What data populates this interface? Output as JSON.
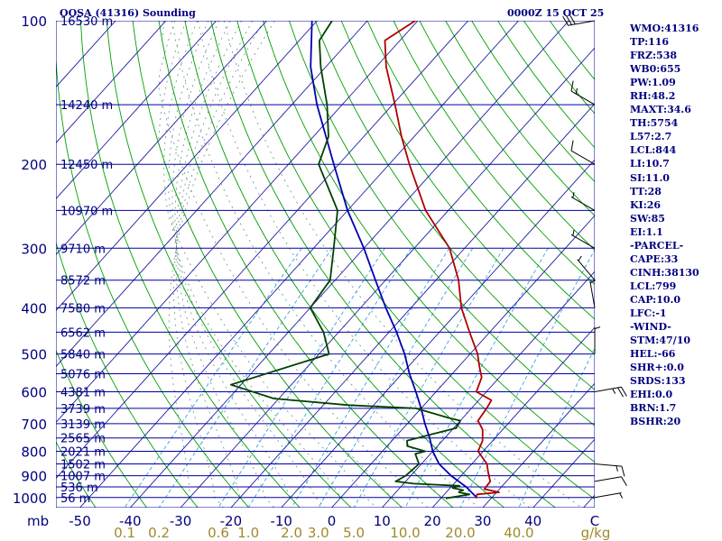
{
  "header": {
    "title": "OOSA (41316) Sounding",
    "datetime": "0000Z 15 OCT 25"
  },
  "stats": [
    "WMO:41316",
    "TP:116",
    "FRZ:538",
    "WB0:655",
    "PW:1.09",
    "RH:48.2",
    "MAXT:34.6",
    "TH:5754",
    "L57:2.7",
    "LCL:844",
    "LI:10.7",
    "SI:11.0",
    "TT:28",
    "KI:26",
    "SW:85",
    "EI:1.1",
    "-PARCEL-",
    "CAPE:33",
    "CINH:38130",
    "LCL:799",
    "CAP:10.0",
    "LFC:-1",
    "-WIND-",
    "STM:47/10",
    "HEL:-66",
    "SHR+:0.0",
    "SRDS:133",
    "EHI:0.0",
    "BRN:1.7",
    "BSHR:20"
  ],
  "colors": {
    "isobar": "#0000a0",
    "isotherm": "#1a1aa0",
    "dry_adiabat": "#00a000",
    "moist_adiabat": "#6a8f8a",
    "mixing_ratio": "#3aa0dc",
    "temperature": "#b00000",
    "dewpoint": "#004000",
    "parcel": "#0000b0",
    "axis_text": "#00007f",
    "mixing_text": "#a08a2a"
  },
  "chart_data": {
    "type": "line",
    "skewt": true,
    "pressure_ticks": [
      {
        "p": 100,
        "label": "100"
      },
      {
        "p": 200,
        "label": "200"
      },
      {
        "p": 300,
        "label": "300"
      },
      {
        "p": 400,
        "label": "400"
      },
      {
        "p": 500,
        "label": "500"
      },
      {
        "p": 600,
        "label": "600"
      },
      {
        "p": 700,
        "label": "700"
      },
      {
        "p": 800,
        "label": "800"
      },
      {
        "p": 900,
        "label": "900"
      },
      {
        "p": 1000,
        "label": "1000"
      }
    ],
    "pressure_unit": "mb",
    "temperature_ticks": [
      "-50",
      "-40",
      "-30",
      "-20",
      "-10",
      "0",
      "10",
      "20",
      "30",
      "40"
    ],
    "temperature_values": [
      -50,
      -40,
      -30,
      -20,
      -10,
      0,
      10,
      20,
      30,
      40
    ],
    "temperature_unit": "C",
    "mixing_ratio_labels": [
      "0.1",
      "0.2",
      "0.6",
      "1.0",
      "2.0",
      "3.0",
      "5.0",
      "10.0",
      "20.0",
      "40.0"
    ],
    "mixing_ratio_values": [
      0.1,
      0.2,
      0.6,
      1.0,
      2.0,
      3.0,
      5.0,
      10.0,
      20.0,
      40.0
    ],
    "mixing_ratio_unit": "g/kg",
    "height_labels": [
      {
        "p": 100,
        "label": "16530 m"
      },
      {
        "p": 150,
        "label": "14240 m"
      },
      {
        "p": 200,
        "label": "12450 m"
      },
      {
        "p": 250,
        "label": "10970 m"
      },
      {
        "p": 300,
        "label": "9710 m"
      },
      {
        "p": 350,
        "label": "8572 m"
      },
      {
        "p": 400,
        "label": "7580 m"
      },
      {
        "p": 450,
        "label": "6562 m"
      },
      {
        "p": 500,
        "label": "5840 m"
      },
      {
        "p": 550,
        "label": "5076 m"
      },
      {
        "p": 600,
        "label": "4381 m"
      },
      {
        "p": 650,
        "label": "3739 m"
      },
      {
        "p": 700,
        "label": "3139 m"
      },
      {
        "p": 750,
        "label": "2565 m"
      },
      {
        "p": 800,
        "label": "2021 m"
      },
      {
        "p": 850,
        "label": "1502 m"
      },
      {
        "p": 900,
        "label": "1007 m"
      },
      {
        "p": 950,
        "label": "536 m"
      },
      {
        "p": 1000,
        "label": "56 m"
      }
    ],
    "temperature_profile": [
      [
        1004,
        27.0
      ],
      [
        985,
        26.5
      ],
      [
        975,
        30.5
      ],
      [
        960,
        27.0
      ],
      [
        925,
        26.8
      ],
      [
        900,
        25.5
      ],
      [
        880,
        24.5
      ],
      [
        850,
        23.0
      ],
      [
        800,
        19.0
      ],
      [
        760,
        18.0
      ],
      [
        720,
        16.0
      ],
      [
        690,
        13.5
      ],
      [
        650,
        13.0
      ],
      [
        625,
        12.5
      ],
      [
        600,
        8.0
      ],
      [
        560,
        6.5
      ],
      [
        530,
        4.0
      ],
      [
        500,
        1.5
      ],
      [
        450,
        -4.0
      ],
      [
        400,
        -10.0
      ],
      [
        350,
        -15.5
      ],
      [
        300,
        -23.0
      ],
      [
        250,
        -34.5
      ],
      [
        200,
        -46.0
      ],
      [
        175,
        -52.5
      ],
      [
        150,
        -59.5
      ],
      [
        125,
        -68.0
      ],
      [
        110,
        -73.0
      ],
      [
        100,
        -70.5
      ],
      [
        90,
        -68.0
      ]
    ],
    "dewpoint_profile": [
      [
        1004,
        21.0
      ],
      [
        985,
        25.0
      ],
      [
        975,
        22.5
      ],
      [
        965,
        23.0
      ],
      [
        955,
        20.5
      ],
      [
        945,
        21.5
      ],
      [
        935,
        12.0
      ],
      [
        925,
        8.0
      ],
      [
        900,
        9.0
      ],
      [
        850,
        9.5
      ],
      [
        810,
        7.0
      ],
      [
        800,
        8.5
      ],
      [
        780,
        4.0
      ],
      [
        760,
        3.0
      ],
      [
        735,
        7.0
      ],
      [
        715,
        10.5
      ],
      [
        690,
        10.0
      ],
      [
        680,
        7.0
      ],
      [
        650,
        -1.0
      ],
      [
        640,
        -15.0
      ],
      [
        620,
        -31.0
      ],
      [
        580,
        -42.0
      ],
      [
        500,
        -28.0
      ],
      [
        450,
        -33.0
      ],
      [
        400,
        -40.0
      ],
      [
        350,
        -41.0
      ],
      [
        300,
        -46.0
      ],
      [
        250,
        -52.0
      ],
      [
        200,
        -64.0
      ],
      [
        175,
        -67.0
      ],
      [
        150,
        -73.0
      ],
      [
        125,
        -81.0
      ],
      [
        110,
        -86.0
      ],
      [
        100,
        -87.0
      ],
      [
        90,
        -86.5
      ]
    ],
    "parcel_profile": [
      [
        1000,
        27.0
      ],
      [
        950,
        23.0
      ],
      [
        900,
        18.0
      ],
      [
        850,
        13.5
      ],
      [
        800,
        10.0
      ],
      [
        750,
        7.0
      ],
      [
        700,
        3.5
      ],
      [
        650,
        0.0
      ],
      [
        600,
        -4.0
      ],
      [
        550,
        -8.5
      ],
      [
        500,
        -13.0
      ],
      [
        450,
        -18.5
      ],
      [
        400,
        -25.0
      ],
      [
        350,
        -32.0
      ],
      [
        300,
        -40.0
      ],
      [
        250,
        -50.0
      ],
      [
        200,
        -61.0
      ],
      [
        150,
        -75.0
      ],
      [
        125,
        -83.0
      ],
      [
        100,
        -91.0
      ]
    ],
    "wind_barbs": [
      {
        "p": 100,
        "dir": 260,
        "kt": 30
      },
      {
        "p": 150,
        "dir": 300,
        "kt": 15
      },
      {
        "p": 200,
        "dir": 300,
        "kt": 10
      },
      {
        "p": 250,
        "dir": 300,
        "kt": 5
      },
      {
        "p": 300,
        "dir": 300,
        "kt": 5
      },
      {
        "p": 350,
        "dir": 320,
        "kt": 5
      },
      {
        "p": 400,
        "dir": 350,
        "kt": 5
      },
      {
        "p": 500,
        "dir": 360,
        "kt": 5
      },
      {
        "p": 600,
        "dir": 80,
        "kt": 25
      },
      {
        "p": 850,
        "dir": 95,
        "kt": 15
      },
      {
        "p": 925,
        "dir": 80,
        "kt": 10
      },
      {
        "p": 1000,
        "dir": 80,
        "kt": 5
      }
    ]
  }
}
